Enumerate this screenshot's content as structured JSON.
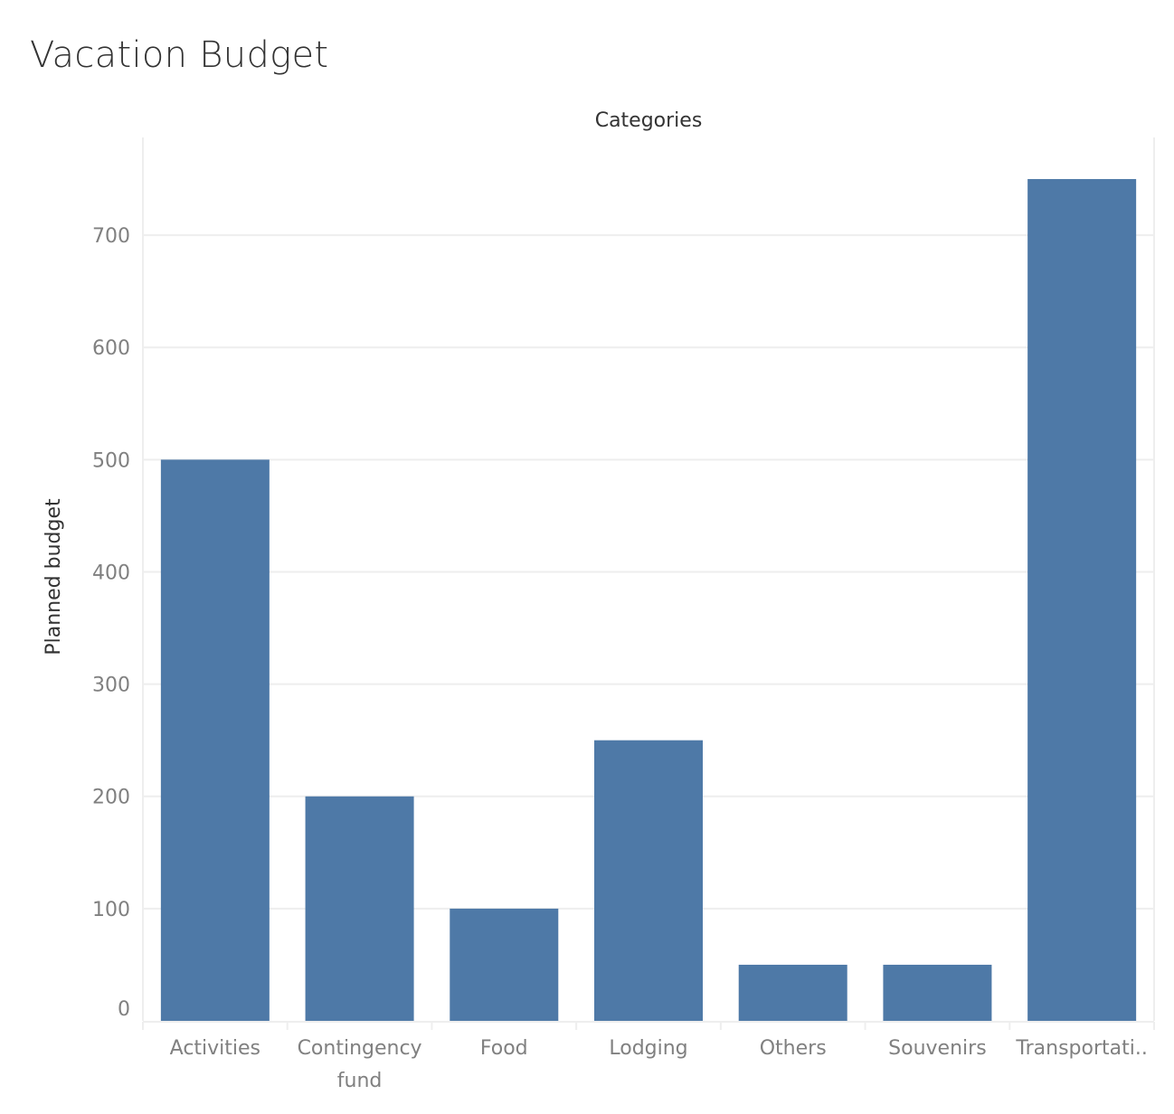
{
  "chart_data": {
    "type": "bar",
    "title": "Vacation Budget",
    "xlabel": "Categories",
    "ylabel": "Planned budget",
    "categories": [
      [
        "Activities"
      ],
      [
        "Contingency",
        "fund"
      ],
      [
        "Food"
      ],
      [
        "Lodging"
      ],
      [
        "Others"
      ],
      [
        "Souvenirs"
      ],
      [
        "Transportati.."
      ]
    ],
    "values": [
      500,
      200,
      100,
      250,
      50,
      50,
      750
    ],
    "yticks": [
      0,
      100,
      200,
      300,
      400,
      500,
      600,
      700
    ],
    "ylim": [
      0,
      780
    ],
    "grid": true,
    "bar_color": "#4e79a7"
  }
}
